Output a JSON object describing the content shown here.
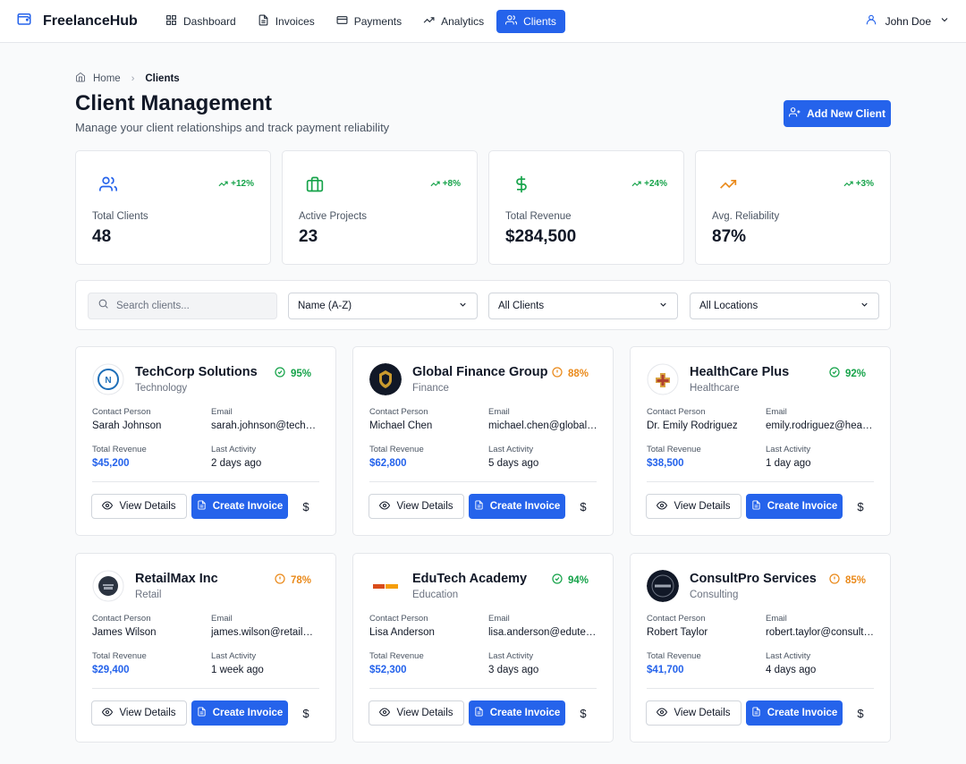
{
  "app": {
    "name": "FreelanceHub"
  },
  "nav": [
    {
      "label": "Dashboard",
      "icon": "dashboard-icon"
    },
    {
      "label": "Invoices",
      "icon": "invoice-icon"
    },
    {
      "label": "Payments",
      "icon": "credit-card-icon"
    },
    {
      "label": "Analytics",
      "icon": "trending-up-icon"
    },
    {
      "label": "Clients",
      "icon": "users-icon",
      "active": true
    }
  ],
  "user": {
    "name": "John Doe"
  },
  "breadcrumb": {
    "home": "Home",
    "current": "Clients"
  },
  "header": {
    "title": "Client Management",
    "subtitle": "Manage your client relationships and track payment reliability",
    "add_button": "Add New Client"
  },
  "stats": [
    {
      "label": "Total Clients",
      "value": "48",
      "trend": "+12%",
      "icon": "users-icon",
      "icon_color": "#2563eb"
    },
    {
      "label": "Active Projects",
      "value": "23",
      "trend": "+8%",
      "icon": "briefcase-icon",
      "icon_color": "#16a34a"
    },
    {
      "label": "Total Revenue",
      "value": "$284,500",
      "trend": "+24%",
      "icon": "dollar-icon",
      "icon_color": "#16a34a"
    },
    {
      "label": "Avg. Reliability",
      "value": "87%",
      "trend": "+3%",
      "icon": "trending-up-icon",
      "icon_color": "#ea8a1b"
    }
  ],
  "filters": {
    "search_placeholder": "Search clients...",
    "sort": "Name (A-Z)",
    "status": "All Clients",
    "location": "All Locations"
  },
  "labels": {
    "contact": "Contact Person",
    "email": "Email",
    "revenue": "Total Revenue",
    "activity": "Last Activity",
    "view": "View Details",
    "invoice": "Create Invoice",
    "dollar": "$"
  },
  "clients": [
    {
      "name": "TechCorp Solutions",
      "industry": "Technology",
      "score": "95%",
      "status": "good",
      "contact": "Sarah Johnson",
      "email": "sarah.johnson@techcorp.com",
      "revenue": "$45,200",
      "activity": "2 days ago"
    },
    {
      "name": "Global Finance Group",
      "industry": "Finance",
      "score": "88%",
      "status": "warn",
      "contact": "Michael Chen",
      "email": "michael.chen@globalfinance.com",
      "revenue": "$62,800",
      "activity": "5 days ago"
    },
    {
      "name": "HealthCare Plus",
      "industry": "Healthcare",
      "score": "92%",
      "status": "good",
      "contact": "Dr. Emily Rodriguez",
      "email": "emily.rodriguez@healthcareplus.com",
      "revenue": "$38,500",
      "activity": "1 day ago"
    },
    {
      "name": "RetailMax Inc",
      "industry": "Retail",
      "score": "78%",
      "status": "warn",
      "contact": "James Wilson",
      "email": "james.wilson@retailmax.com",
      "revenue": "$29,400",
      "activity": "1 week ago"
    },
    {
      "name": "EduTech Academy",
      "industry": "Education",
      "score": "94%",
      "status": "good",
      "contact": "Lisa Anderson",
      "email": "lisa.anderson@edutech.com",
      "revenue": "$52,300",
      "activity": "3 days ago"
    },
    {
      "name": "ConsultPro Services",
      "industry": "Consulting",
      "score": "85%",
      "status": "warn",
      "contact": "Robert Taylor",
      "email": "robert.taylor@consultpro.com",
      "revenue": "$41,700",
      "activity": "4 days ago"
    }
  ],
  "colors": {
    "primary": "#2563eb",
    "success": "#16a34a",
    "warning": "#ea8a1b"
  }
}
